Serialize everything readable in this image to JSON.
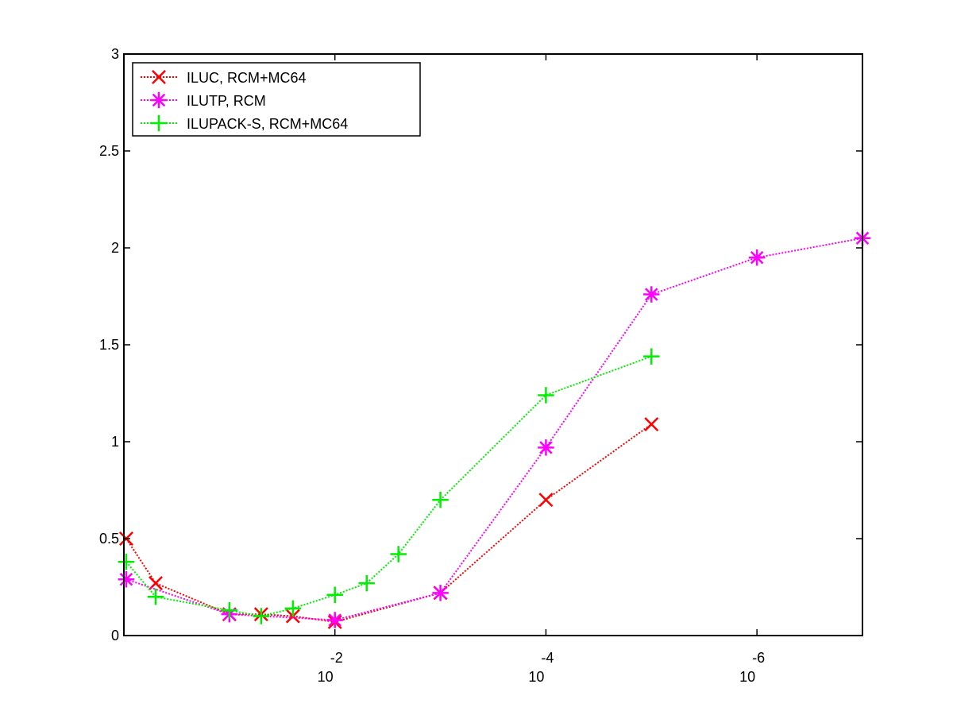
{
  "chart_data": {
    "type": "line",
    "title": "",
    "xlabel": "",
    "ylabel": "",
    "x_scale": "log-reversed",
    "xlim": [
      1,
      1e-07
    ],
    "ylim": [
      0,
      3
    ],
    "x_ticks": [
      {
        "value": 0.01,
        "base": "10",
        "exponent": "-2"
      },
      {
        "value": 0.0001,
        "base": "10",
        "exponent": "-4"
      },
      {
        "value": 1e-06,
        "base": "10",
        "exponent": "-6"
      }
    ],
    "y_ticks": [
      {
        "value": 0,
        "label": "0"
      },
      {
        "value": 0.5,
        "label": "0.5"
      },
      {
        "value": 1,
        "label": "1"
      },
      {
        "value": 1.5,
        "label": "1.5"
      },
      {
        "value": 2,
        "label": "2"
      },
      {
        "value": 2.5,
        "label": "2.5"
      },
      {
        "value": 3,
        "label": "3"
      }
    ],
    "grid": false,
    "legend_position": "top-left",
    "series": [
      {
        "name": "ILUC, RCM+MC64",
        "color": "#ff0000",
        "marker": "x",
        "points": [
          {
            "x": 0.95,
            "y": 0.5
          },
          {
            "x": 0.5,
            "y": 0.27
          },
          {
            "x": 0.1,
            "y": 0.11
          },
          {
            "x": 0.05,
            "y": 0.11
          },
          {
            "x": 0.025,
            "y": 0.1
          },
          {
            "x": 0.01,
            "y": 0.07
          },
          {
            "x": 0.001,
            "y": 0.22
          },
          {
            "x": 0.0001,
            "y": 0.7
          },
          {
            "x": 1e-05,
            "y": 1.09
          }
        ]
      },
      {
        "name": "ILUTP, RCM",
        "color": "#ff00ff",
        "marker": "asterisk",
        "points": [
          {
            "x": 0.95,
            "y": 0.29
          },
          {
            "x": 0.1,
            "y": 0.11
          },
          {
            "x": 0.01,
            "y": 0.08
          },
          {
            "x": 0.001,
            "y": 0.22
          },
          {
            "x": 0.0001,
            "y": 0.97
          },
          {
            "x": 1e-05,
            "y": 1.76
          },
          {
            "x": 1e-06,
            "y": 1.95
          },
          {
            "x": 1e-07,
            "y": 2.05
          }
        ]
      },
      {
        "name": "ILUPACK-S, RCM+MC64",
        "color": "#00ee00",
        "marker": "plus",
        "points": [
          {
            "x": 0.95,
            "y": 0.38
          },
          {
            "x": 0.5,
            "y": 0.2
          },
          {
            "x": 0.1,
            "y": 0.13
          },
          {
            "x": 0.05,
            "y": 0.1
          },
          {
            "x": 0.025,
            "y": 0.14
          },
          {
            "x": 0.01,
            "y": 0.21
          },
          {
            "x": 0.005,
            "y": 0.27
          },
          {
            "x": 0.0025,
            "y": 0.42
          },
          {
            "x": 0.001,
            "y": 0.7
          },
          {
            "x": 0.0001,
            "y": 1.24
          },
          {
            "x": 1e-05,
            "y": 1.44
          }
        ]
      }
    ]
  }
}
